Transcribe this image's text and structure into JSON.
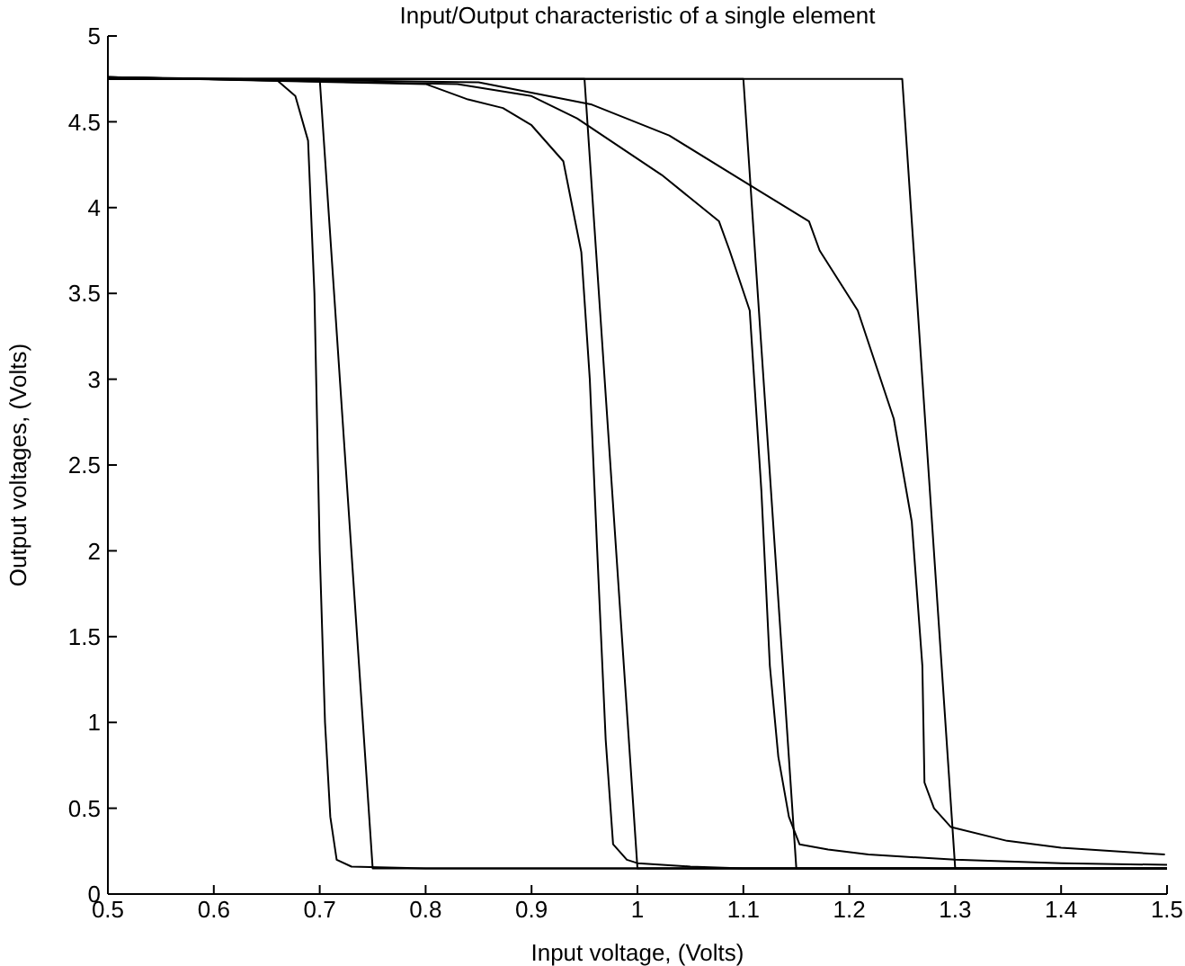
{
  "chart_data": {
    "type": "line",
    "title": "Input/Output characteristic of a single element",
    "xlabel": "Input voltage, (Volts)",
    "ylabel": "Output voltages, (Volts)",
    "xlim": [
      0.5,
      1.5
    ],
    "ylim": [
      0,
      5
    ],
    "xticks": [
      0.5,
      0.6,
      0.7,
      0.8,
      0.9,
      1,
      1.1,
      1.2,
      1.3,
      1.4,
      1.5
    ],
    "yticks": [
      0,
      0.5,
      1,
      1.5,
      2,
      2.5,
      3,
      3.5,
      4,
      4.5,
      5
    ],
    "grid": false,
    "legend": false,
    "marker": "none",
    "line_style": "solid",
    "series": [
      {
        "color": "#000000",
        "x": [
          0.5,
          0.7,
          0.75,
          1.5
        ],
        "values": [
          4.75,
          4.75,
          0.15,
          0.15
        ]
      },
      {
        "color": "#000000",
        "x": [
          0.5,
          0.95,
          1.0,
          1.5
        ],
        "values": [
          4.75,
          4.75,
          0.15,
          0.15
        ]
      },
      {
        "color": "#000000",
        "x": [
          0.5,
          1.1,
          1.15,
          1.5
        ],
        "values": [
          4.75,
          4.75,
          0.15,
          0.15
        ]
      },
      {
        "color": "#000000",
        "x": [
          0.5,
          1.25,
          1.3,
          1.5
        ],
        "values": [
          4.75,
          4.75,
          0.15,
          0.15
        ]
      },
      {
        "color": "#000000",
        "x": [
          0.5,
          0.66,
          0.677,
          0.689,
          0.695,
          0.7,
          0.705,
          0.71,
          0.716,
          0.73,
          0.8,
          1.5
        ],
        "values": [
          4.76,
          4.74,
          4.65,
          4.39,
          3.5,
          2.0,
          1.0,
          0.45,
          0.2,
          0.16,
          0.15,
          0.15
        ]
      },
      {
        "color": "#000000",
        "x": [
          0.5,
          0.8,
          0.84,
          0.873,
          0.9,
          0.93,
          0.947,
          0.955,
          0.962,
          0.97,
          0.977,
          0.99,
          1.0,
          1.05,
          1.1,
          1.5
        ],
        "values": [
          4.76,
          4.72,
          4.63,
          4.58,
          4.48,
          4.27,
          3.74,
          3.0,
          2.0,
          0.9,
          0.29,
          0.2,
          0.18,
          0.16,
          0.15,
          0.15
        ]
      },
      {
        "color": "#000000",
        "x": [
          0.5,
          0.83,
          0.9,
          0.943,
          1.023,
          1.077,
          1.087,
          1.106,
          1.117,
          1.125,
          1.133,
          1.143,
          1.153,
          1.18,
          1.218,
          1.3,
          1.4,
          1.5
        ],
        "values": [
          4.76,
          4.72,
          4.65,
          4.52,
          4.19,
          3.92,
          3.75,
          3.4,
          2.35,
          1.33,
          0.8,
          0.45,
          0.29,
          0.26,
          0.23,
          0.2,
          0.18,
          0.17
        ]
      },
      {
        "color": "#000000",
        "x": [
          0.5,
          0.85,
          0.957,
          1.03,
          1.101,
          1.162,
          1.172,
          1.208,
          1.242,
          1.259,
          1.269,
          1.271,
          1.28,
          1.296,
          1.349,
          1.4,
          1.498
        ],
        "values": [
          4.76,
          4.73,
          4.6,
          4.42,
          4.15,
          3.92,
          3.75,
          3.4,
          2.77,
          2.17,
          1.33,
          0.65,
          0.5,
          0.39,
          0.31,
          0.27,
          0.23
        ]
      }
    ]
  }
}
